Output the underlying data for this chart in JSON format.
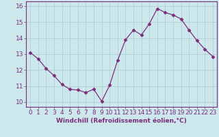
{
  "x": [
    0,
    1,
    2,
    3,
    4,
    5,
    6,
    7,
    8,
    9,
    10,
    11,
    12,
    13,
    14,
    15,
    16,
    17,
    18,
    19,
    20,
    21,
    22,
    23
  ],
  "y": [
    13.1,
    12.7,
    12.1,
    11.65,
    11.1,
    10.8,
    10.75,
    10.6,
    10.8,
    10.05,
    11.05,
    12.6,
    13.9,
    14.5,
    14.2,
    14.9,
    15.85,
    15.6,
    15.45,
    15.2,
    14.5,
    13.85,
    13.3,
    12.85
  ],
  "line_color": "#7B2D7B",
  "marker": "D",
  "marker_size": 2.5,
  "bg_color": "#cce8ec",
  "grid_color": "#aaccd0",
  "xlabel": "Windchill (Refroidissement éolien,°C)",
  "ylim": [
    9.7,
    16.3
  ],
  "xlim": [
    -0.5,
    23.5
  ],
  "xticks": [
    0,
    1,
    2,
    3,
    4,
    5,
    6,
    7,
    8,
    9,
    10,
    11,
    12,
    13,
    14,
    15,
    16,
    17,
    18,
    19,
    20,
    21,
    22,
    23
  ],
  "yticks": [
    10,
    11,
    12,
    13,
    14,
    15,
    16
  ],
  "tick_color": "#7B2D7B",
  "xlabel_fontsize": 6.5,
  "tick_fontsize": 6.5
}
